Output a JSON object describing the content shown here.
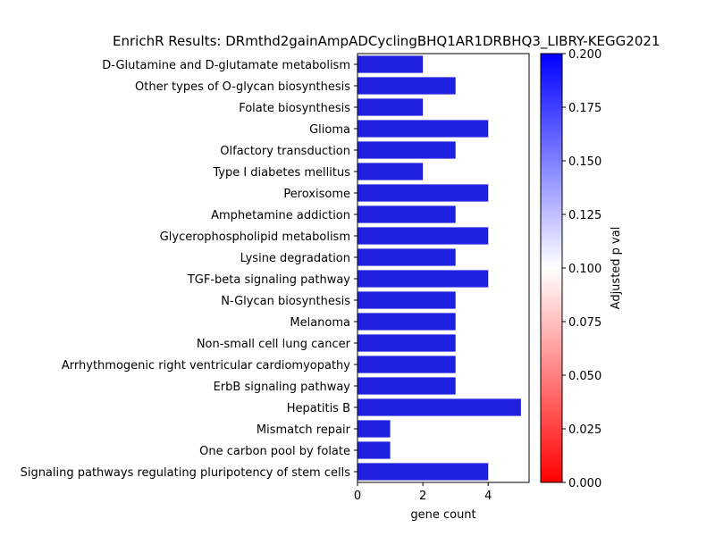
{
  "chart_data": {
    "type": "bar",
    "orientation": "horizontal",
    "title": "EnrichR Results: DRmthd2gainAmpADCyclingBHQ1AR1DRBHQ3_LIBRY-KEGG2021",
    "xlabel": "gene count",
    "ylabel": "",
    "xlim": [
      0,
      5.25
    ],
    "xticks": [
      0,
      2,
      4
    ],
    "categories": [
      "D-Glutamine and D-glutamate metabolism",
      "Other types of O-glycan biosynthesis",
      "Folate biosynthesis",
      "Glioma",
      "Olfactory transduction",
      "Type I diabetes mellitus",
      "Peroxisome",
      "Amphetamine addiction",
      "Glycerophospholipid metabolism",
      "Lysine degradation",
      "TGF-beta signaling pathway",
      "N-Glycan biosynthesis",
      "Melanoma",
      "Non-small cell lung cancer",
      "Arrhythmogenic right ventricular cardiomyopathy",
      "ErbB signaling pathway",
      "Hepatitis B",
      "Mismatch repair",
      "One carbon pool by folate",
      "Signaling pathways regulating pluripotency of stem cells"
    ],
    "values": [
      2,
      3,
      2,
      4,
      3,
      2,
      4,
      3,
      4,
      3,
      4,
      3,
      3,
      3,
      3,
      3,
      5,
      1,
      1,
      4
    ],
    "bar_color": "#2020e0",
    "colorbar": {
      "label": "Adjusted p val",
      "range": [
        0,
        0.2
      ],
      "ticks": [
        "0.000",
        "0.025",
        "0.050",
        "0.075",
        "0.100",
        "0.125",
        "0.150",
        "0.175",
        "0.200"
      ],
      "colormap": [
        "#ff0000",
        "#ffffff",
        "#0000ff"
      ]
    },
    "grid": false,
    "legend": "none"
  }
}
